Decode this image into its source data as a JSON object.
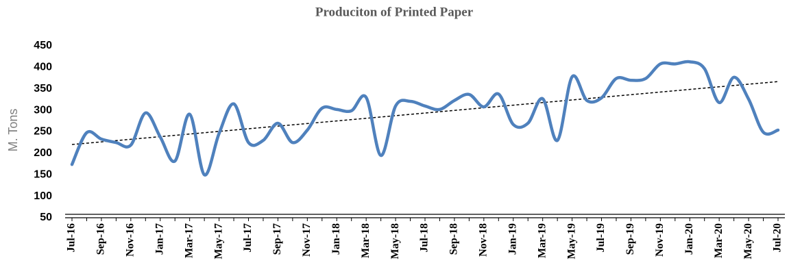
{
  "chart_data": {
    "type": "line",
    "title": "Produciton of Printed Paper",
    "y_label": "M. Tons",
    "categories": [
      "Jul-16",
      null,
      "Sep-16",
      null,
      "Nov-16",
      null,
      "Jan-17",
      null,
      "Mar-17",
      null,
      "May-17",
      null,
      "Jul-17",
      null,
      "Sep-17",
      null,
      "Nov-17",
      null,
      "Jan-18",
      null,
      "Mar-18",
      null,
      "May-18",
      null,
      "Jul-18",
      null,
      "Sep-18",
      null,
      "Nov-18",
      null,
      "Jan-19",
      null,
      "Mar-19",
      null,
      "May-19",
      null,
      "Jul-19",
      null,
      "Sep-19",
      null,
      "Nov-19",
      null,
      "Jan-20",
      null,
      "Mar-20",
      null,
      "May-20",
      null,
      "Jul-20"
    ],
    "values": [
      174,
      248,
      233,
      225,
      219,
      294,
      238,
      182,
      291,
      150,
      246,
      315,
      225,
      230,
      270,
      225,
      254,
      305,
      302,
      299,
      330,
      195,
      310,
      321,
      310,
      302,
      323,
      337,
      308,
      338,
      267,
      270,
      327,
      230,
      378,
      323,
      329,
      374,
      370,
      374,
      408,
      408,
      413,
      397,
      318,
      377,
      326,
      249,
      254
    ],
    "color": "#4f81bd",
    "trendline": "linear",
    "ylim": [
      50,
      450
    ],
    "yticks": [
      50,
      100,
      150,
      200,
      250,
      300,
      350,
      400,
      450
    ],
    "grid": false
  }
}
